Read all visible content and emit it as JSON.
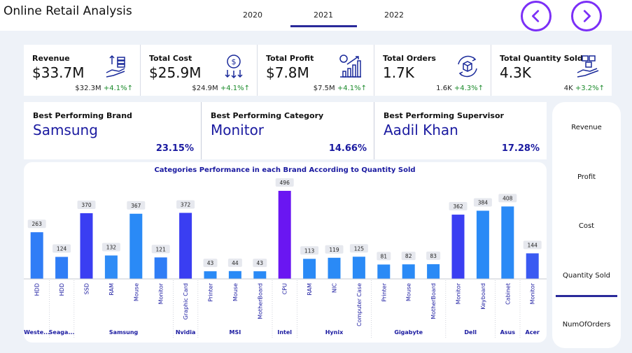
{
  "app": {
    "title": "Online Retail Analysis"
  },
  "years": [
    "2020",
    "2021",
    "2022"
  ],
  "selected_year": "2021",
  "kpis": [
    {
      "label": "Revenue",
      "value": "$33.7M",
      "prev": "$32.3M",
      "change": "+4.1%↑",
      "icon": "money-hand-icon"
    },
    {
      "label": "Total Cost",
      "value": "$25.9M",
      "prev": "$24.9M",
      "change": "+4.1%↑",
      "icon": "coin-cost-icon"
    },
    {
      "label": "Total Profit",
      "value": "$7.8M",
      "prev": "$7.5M",
      "change": "+4.1%↑",
      "icon": "profit-chart-icon"
    },
    {
      "label": "Total Orders",
      "value": "1.7K",
      "prev": "1.6K",
      "change": "+4.3%↑",
      "icon": "box-cycle-icon"
    },
    {
      "label": "Total Quantity Sold",
      "value": "4.3K",
      "prev": "4K",
      "change": "+3.2%↑",
      "icon": "boxes-hand-icon"
    }
  ],
  "best": [
    {
      "label": "Best Performing Brand",
      "value": "Samsung",
      "pct": "23.15%"
    },
    {
      "label": "Best Performing Category",
      "value": "Monitor",
      "pct": "14.66%"
    },
    {
      "label": "Best Performing Supervisor",
      "value": "Aadil Khan",
      "pct": "17.28%"
    }
  ],
  "side_menu": {
    "items": [
      "Revenue",
      "Profit",
      "Cost",
      "Quantity Sold",
      "NumOfOrders"
    ],
    "selected": "Quantity Sold"
  },
  "chart_data": {
    "type": "bar",
    "title": "Categories Performance in each Brand According to Quantity Sold",
    "categories": [
      "HDD",
      "HDD",
      "SSD",
      "RAM",
      "Mouse",
      "Monitor",
      "Graphic Card",
      "Printer",
      "Mouse",
      "MotherBoard",
      "CPU",
      "RAM",
      "NIC",
      "Computer Case",
      "Printer",
      "Mouse",
      "MotherBoard",
      "Monitor",
      "Keyboard",
      "Cabinet",
      "Monitor"
    ],
    "values": [
      263,
      124,
      370,
      132,
      367,
      121,
      372,
      43,
      44,
      43,
      496,
      113,
      119,
      125,
      81,
      82,
      83,
      362,
      384,
      408,
      144
    ],
    "bar_colors": [
      "#2f7df6",
      "#2f7df6",
      "#3a3ef2",
      "#2f8cf6",
      "#2a8af6",
      "#2f7df6",
      "#3a3ef2",
      "#2a8af6",
      "#2a8af6",
      "#2a8af6",
      "#6a16f2",
      "#2a8af6",
      "#2a8af6",
      "#2a8af6",
      "#2a8af6",
      "#2a8af6",
      "#2a8af6",
      "#3a3ef2",
      "#2a8af6",
      "#2a8af6",
      "#3a5af2"
    ],
    "brands": [
      {
        "name": "Weste...",
        "span": 1
      },
      {
        "name": "Seaga...",
        "span": 1
      },
      {
        "name": "Samsung",
        "span": 4
      },
      {
        "name": "Nvidia",
        "span": 1
      },
      {
        "name": "MSI",
        "span": 3
      },
      {
        "name": "Intel",
        "span": 1
      },
      {
        "name": "Hynix",
        "span": 3
      },
      {
        "name": "Gigabyte",
        "span": 3
      },
      {
        "name": "Dell",
        "span": 2
      },
      {
        "name": "Asus",
        "span": 1
      },
      {
        "name": "Acer",
        "span": 1
      }
    ],
    "ylim": [
      0,
      500
    ]
  }
}
